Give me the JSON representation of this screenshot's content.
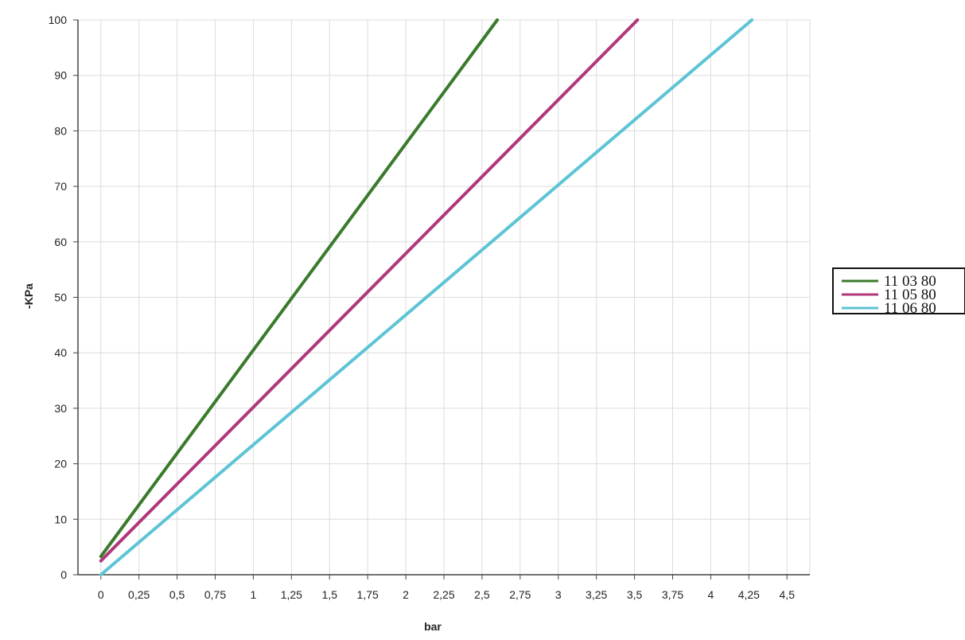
{
  "chart_data": {
    "type": "line",
    "title": "",
    "xlabel": "bar",
    "ylabel": "-KPa",
    "xlim": [
      -0.15,
      4.65
    ],
    "ylim": [
      0,
      100
    ],
    "x_ticks": [
      0,
      0.25,
      0.5,
      0.75,
      1,
      1.25,
      1.5,
      1.75,
      2,
      2.25,
      2.5,
      2.75,
      3,
      3.25,
      3.5,
      3.75,
      4,
      4.25,
      4.5
    ],
    "x_tick_labels": [
      "0",
      "0,25",
      "0,5",
      "0,75",
      "1",
      "1,25",
      "1,5",
      "1,75",
      "2",
      "2,25",
      "2,5",
      "2,75",
      "3",
      "3,25",
      "3,5",
      "3,75",
      "4",
      "4,25",
      "4,5"
    ],
    "y_ticks": [
      0,
      10,
      20,
      30,
      40,
      50,
      60,
      70,
      80,
      90,
      100
    ],
    "y_tick_labels": [
      "0",
      "10",
      "20",
      "30",
      "40",
      "50",
      "60",
      "70",
      "80",
      "90",
      "100"
    ],
    "grid": true,
    "legend_position": "right",
    "series": [
      {
        "name": "11 03 80",
        "color": "#3a7a2c",
        "x": [
          0,
          2.6
        ],
        "y": [
          3.3,
          100
        ]
      },
      {
        "name": "11 05 80",
        "color": "#b0387a",
        "x": [
          0,
          3.52
        ],
        "y": [
          2.5,
          100
        ]
      },
      {
        "name": "11 06 80",
        "color": "#5cc4d4",
        "x": [
          0,
          4.27
        ],
        "y": [
          0,
          100
        ]
      }
    ]
  }
}
